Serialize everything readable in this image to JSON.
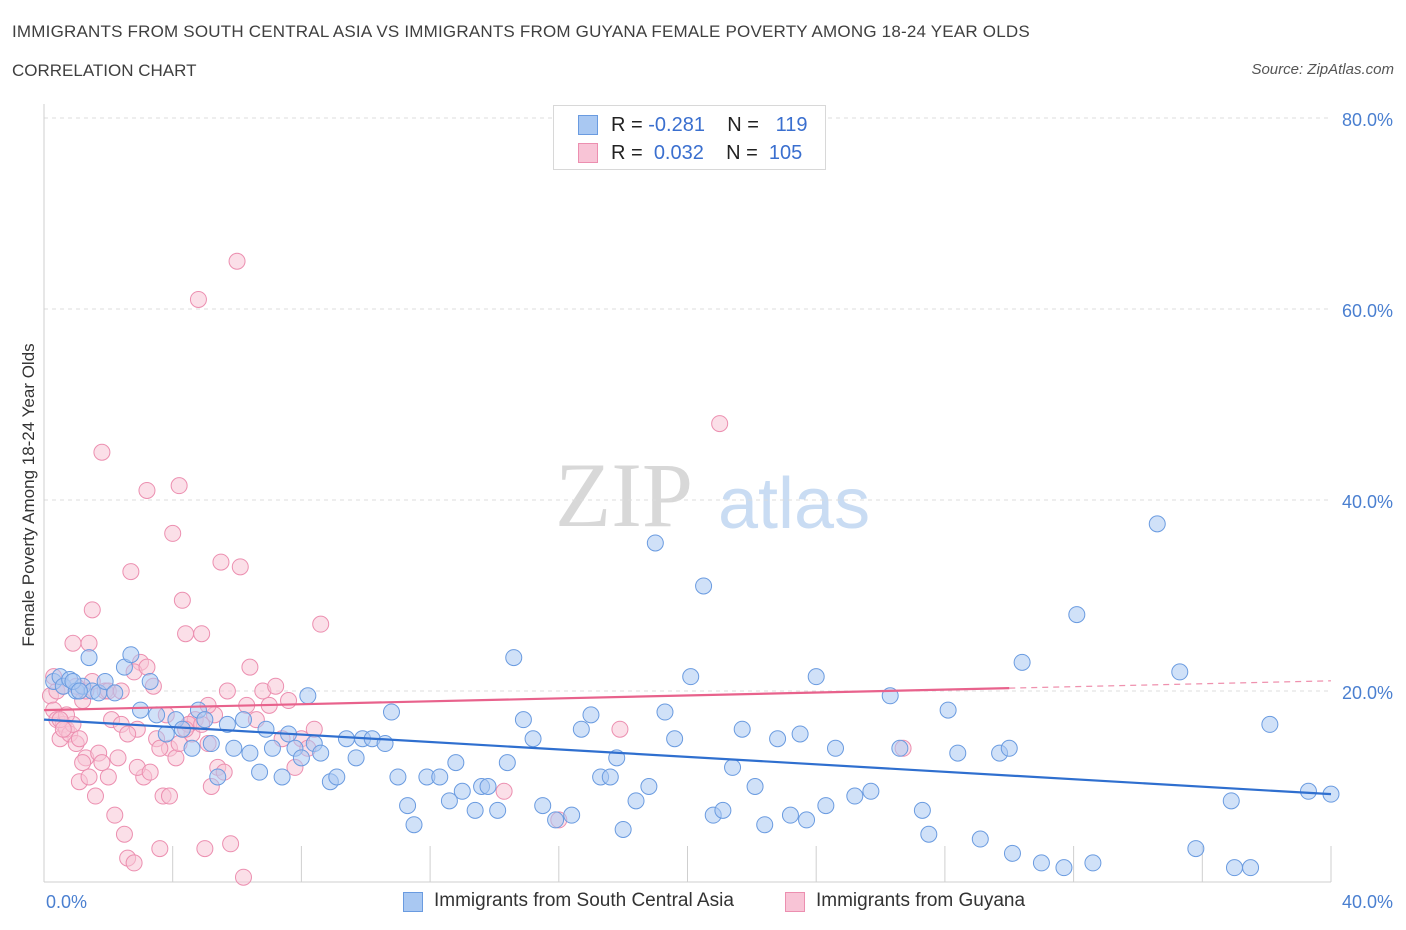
{
  "title": "IMMIGRANTS FROM SOUTH CENTRAL ASIA VS IMMIGRANTS FROM GUYANA FEMALE POVERTY AMONG 18-24 YEAR OLDS",
  "subtitle": "CORRELATION CHART",
  "source": "Source: ZipAtlas.com",
  "watermark": {
    "zip": "ZIP",
    "atlas": "atlas"
  },
  "legend": {
    "r_label": "R =",
    "n_label": "N =",
    "series": [
      {
        "r": "-0.281",
        "n": "119",
        "color": "#a9c8f2",
        "border": "#6a9be0"
      },
      {
        "r": "0.032",
        "n": "105",
        "color": "#f8c4d6",
        "border": "#ec8fb0"
      }
    ]
  },
  "bottom_legend": [
    "Immigrants from South Central Asia",
    "Immigrants from Guyana"
  ],
  "colors": {
    "blue_fill": "#a9c8f2",
    "blue_stroke": "#6a9be0",
    "blue_line": "#2f6fcf",
    "pink_fill": "#f8c4d6",
    "pink_stroke": "#ec8fb0",
    "pink_line": "#e8628c",
    "tick_label": "#4a7fd0"
  },
  "chart_data": {
    "type": "scatter",
    "title": "IMMIGRANTS FROM SOUTH CENTRAL ASIA VS IMMIGRANTS FROM GUYANA FEMALE POVERTY AMONG 18-24 YEAR OLDS",
    "xlabel": "",
    "ylabel": "Female Poverty Among 18-24 Year Olds",
    "xlim": [
      0,
      40
    ],
    "ylim": [
      0,
      80
    ],
    "x_ticks": [
      "0.0%",
      "40.0%"
    ],
    "y_ticks": [
      "20.0%",
      "40.0%",
      "60.0%",
      "80.0%"
    ],
    "y_tick_values": [
      20,
      40,
      60,
      80
    ],
    "grid": "horizontal dashed",
    "legend_position": "top-center",
    "series": [
      {
        "name": "Immigrants from South Central Asia",
        "trend": {
          "x": [
            0,
            40
          ],
          "y": [
            17.0,
            9.2
          ]
        },
        "points": [
          [
            0.3,
            21.0
          ],
          [
            0.5,
            21.5
          ],
          [
            0.6,
            20.5
          ],
          [
            0.8,
            21.2
          ],
          [
            1.0,
            20.0
          ],
          [
            1.2,
            20.5
          ],
          [
            1.4,
            23.5
          ],
          [
            1.5,
            20.0
          ],
          [
            1.7,
            19.8
          ],
          [
            1.9,
            21.0
          ],
          [
            2.2,
            19.8
          ],
          [
            2.5,
            22.5
          ],
          [
            2.7,
            23.8
          ],
          [
            3.0,
            18.0
          ],
          [
            3.3,
            21.0
          ],
          [
            3.5,
            17.5
          ],
          [
            3.8,
            15.5
          ],
          [
            4.1,
            17.0
          ],
          [
            4.3,
            16.0
          ],
          [
            4.6,
            14.0
          ],
          [
            4.8,
            18.0
          ],
          [
            5.0,
            17.0
          ],
          [
            5.2,
            14.5
          ],
          [
            5.4,
            11.0
          ],
          [
            5.7,
            16.5
          ],
          [
            5.9,
            14.0
          ],
          [
            6.2,
            17.0
          ],
          [
            6.4,
            13.5
          ],
          [
            6.7,
            11.5
          ],
          [
            6.9,
            16.0
          ],
          [
            7.1,
            14.0
          ],
          [
            7.4,
            11.0
          ],
          [
            7.6,
            15.5
          ],
          [
            7.8,
            14.0
          ],
          [
            8.0,
            13.0
          ],
          [
            8.2,
            19.5
          ],
          [
            8.4,
            14.5
          ],
          [
            8.6,
            13.5
          ],
          [
            8.9,
            10.5
          ],
          [
            9.1,
            11.0
          ],
          [
            9.4,
            15.0
          ],
          [
            9.7,
            13.0
          ],
          [
            9.9,
            15.0
          ],
          [
            10.2,
            15.0
          ],
          [
            10.6,
            14.5
          ],
          [
            10.8,
            17.8
          ],
          [
            11.0,
            11.0
          ],
          [
            11.3,
            8.0
          ],
          [
            11.5,
            6.0
          ],
          [
            11.9,
            11.0
          ],
          [
            12.3,
            11.0
          ],
          [
            12.6,
            8.5
          ],
          [
            12.8,
            12.5
          ],
          [
            13.0,
            9.5
          ],
          [
            13.4,
            7.5
          ],
          [
            13.6,
            10.0
          ],
          [
            13.8,
            10.0
          ],
          [
            14.1,
            7.5
          ],
          [
            14.4,
            12.5
          ],
          [
            14.6,
            23.5
          ],
          [
            14.9,
            17.0
          ],
          [
            15.2,
            15.0
          ],
          [
            15.5,
            8.0
          ],
          [
            15.9,
            6.5
          ],
          [
            16.4,
            7.0
          ],
          [
            16.7,
            16.0
          ],
          [
            17.0,
            17.5
          ],
          [
            17.3,
            11.0
          ],
          [
            17.6,
            11.0
          ],
          [
            17.8,
            13.0
          ],
          [
            18.0,
            5.5
          ],
          [
            18.4,
            8.5
          ],
          [
            18.8,
            10.0
          ],
          [
            19.0,
            35.5
          ],
          [
            19.3,
            17.8
          ],
          [
            19.6,
            15.0
          ],
          [
            20.1,
            21.5
          ],
          [
            20.5,
            31.0
          ],
          [
            20.8,
            7.0
          ],
          [
            21.1,
            7.5
          ],
          [
            21.4,
            12.0
          ],
          [
            21.7,
            16.0
          ],
          [
            22.1,
            10.0
          ],
          [
            22.4,
            6.0
          ],
          [
            22.8,
            15.0
          ],
          [
            23.2,
            7.0
          ],
          [
            23.5,
            15.5
          ],
          [
            23.7,
            6.5
          ],
          [
            24.0,
            21.5
          ],
          [
            24.3,
            8.0
          ],
          [
            24.6,
            14.0
          ],
          [
            25.2,
            9.0
          ],
          [
            25.7,
            9.5
          ],
          [
            26.3,
            19.5
          ],
          [
            26.6,
            14.0
          ],
          [
            27.3,
            7.5
          ],
          [
            27.5,
            5.0
          ],
          [
            28.1,
            18.0
          ],
          [
            28.4,
            13.5
          ],
          [
            29.1,
            4.5
          ],
          [
            29.7,
            13.5
          ],
          [
            30.1,
            3.0
          ],
          [
            30.4,
            23.0
          ],
          [
            31.7,
            1.5
          ],
          [
            32.1,
            28.0
          ],
          [
            32.6,
            2.0
          ],
          [
            34.6,
            37.5
          ],
          [
            35.3,
            22.0
          ],
          [
            35.8,
            3.5
          ],
          [
            36.9,
            8.5
          ],
          [
            37.5,
            1.5
          ],
          [
            38.1,
            16.5
          ],
          [
            39.3,
            9.5
          ],
          [
            40.0,
            9.2
          ],
          [
            0.9,
            21.0
          ],
          [
            1.1,
            20.0
          ],
          [
            30.0,
            14.0
          ],
          [
            31.0,
            2.0
          ],
          [
            37.0,
            1.5
          ]
        ]
      },
      {
        "name": "Immigrants from Guyana",
        "trend": {
          "x": [
            0,
            30
          ],
          "y": [
            18.0,
            20.3
          ]
        },
        "points": [
          [
            0.2,
            19.5
          ],
          [
            0.3,
            18.0
          ],
          [
            0.4,
            17.0
          ],
          [
            0.5,
            15.0
          ],
          [
            0.6,
            16.5
          ],
          [
            0.7,
            16.0
          ],
          [
            0.8,
            15.5
          ],
          [
            0.9,
            25.0
          ],
          [
            1.0,
            14.5
          ],
          [
            1.1,
            10.5
          ],
          [
            1.2,
            19.0
          ],
          [
            1.3,
            13.0
          ],
          [
            1.4,
            25.0
          ],
          [
            1.5,
            28.5
          ],
          [
            1.6,
            9.0
          ],
          [
            1.7,
            13.5
          ],
          [
            1.8,
            45.0
          ],
          [
            1.9,
            20.0
          ],
          [
            2.0,
            11.0
          ],
          [
            2.1,
            17.0
          ],
          [
            2.2,
            7.0
          ],
          [
            2.3,
            13.0
          ],
          [
            2.4,
            16.5
          ],
          [
            2.5,
            5.0
          ],
          [
            2.6,
            2.5
          ],
          [
            2.7,
            32.5
          ],
          [
            2.8,
            2.0
          ],
          [
            2.9,
            16.0
          ],
          [
            3.0,
            23.0
          ],
          [
            3.1,
            11.0
          ],
          [
            3.2,
            41.0
          ],
          [
            3.4,
            20.5
          ],
          [
            3.5,
            15.0
          ],
          [
            3.6,
            3.5
          ],
          [
            3.7,
            9.0
          ],
          [
            3.8,
            17.5
          ],
          [
            3.9,
            14.0
          ],
          [
            4.0,
            36.5
          ],
          [
            4.1,
            13.0
          ],
          [
            4.2,
            41.5
          ],
          [
            4.3,
            29.5
          ],
          [
            4.4,
            26.0
          ],
          [
            4.5,
            16.5
          ],
          [
            4.6,
            15.5
          ],
          [
            4.7,
            17.0
          ],
          [
            4.8,
            61.0
          ],
          [
            4.9,
            26.0
          ],
          [
            5.0,
            3.5
          ],
          [
            5.1,
            14.5
          ],
          [
            5.2,
            10.0
          ],
          [
            5.3,
            17.5
          ],
          [
            5.4,
            12.0
          ],
          [
            5.5,
            33.5
          ],
          [
            5.6,
            11.5
          ],
          [
            5.8,
            4.0
          ],
          [
            6.0,
            65.0
          ],
          [
            6.1,
            33.0
          ],
          [
            6.2,
            0.5
          ],
          [
            6.4,
            22.5
          ],
          [
            6.6,
            17.0
          ],
          [
            6.8,
            20.0
          ],
          [
            7.0,
            18.5
          ],
          [
            7.2,
            20.5
          ],
          [
            7.4,
            15.0
          ],
          [
            7.6,
            19.0
          ],
          [
            7.8,
            12.0
          ],
          [
            8.0,
            15.0
          ],
          [
            8.2,
            14.0
          ],
          [
            8.4,
            16.0
          ],
          [
            8.6,
            27.0
          ],
          [
            1.0,
            20.5
          ],
          [
            0.9,
            16.5
          ],
          [
            1.1,
            15.0
          ],
          [
            0.4,
            20.0
          ],
          [
            0.3,
            21.5
          ],
          [
            0.6,
            20.5
          ],
          [
            0.7,
            17.5
          ],
          [
            1.3,
            20.0
          ],
          [
            1.5,
            21.0
          ],
          [
            2.0,
            20.0
          ],
          [
            2.4,
            20.0
          ],
          [
            2.8,
            22.0
          ],
          [
            3.2,
            22.5
          ],
          [
            3.6,
            14.0
          ],
          [
            4.2,
            14.5
          ],
          [
            4.5,
            16.5
          ],
          [
            4.9,
            16.5
          ],
          [
            5.1,
            18.5
          ],
          [
            5.7,
            20.0
          ],
          [
            6.3,
            18.5
          ],
          [
            0.5,
            17.0
          ],
          [
            0.6,
            16.0
          ],
          [
            1.2,
            12.5
          ],
          [
            1.4,
            11.0
          ],
          [
            1.8,
            12.5
          ],
          [
            2.6,
            15.5
          ],
          [
            2.9,
            12.0
          ],
          [
            3.3,
            11.5
          ],
          [
            3.9,
            9.0
          ],
          [
            4.4,
            16.0
          ],
          [
            14.3,
            9.5
          ],
          [
            16.0,
            6.5
          ],
          [
            17.9,
            16.0
          ],
          [
            21.0,
            48.0
          ],
          [
            26.7,
            14.0
          ]
        ]
      }
    ]
  },
  "axis": {
    "x_min_label": "0.0%",
    "x_max_label": "40.0%",
    "y_axis_title": "Female Poverty Among 18-24 Year Olds"
  }
}
